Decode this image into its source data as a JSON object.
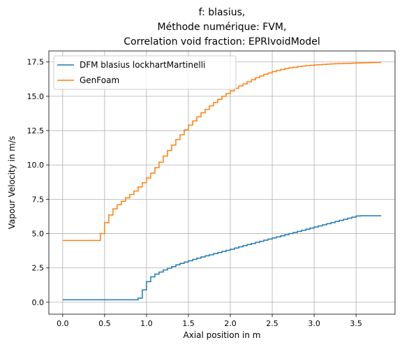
{
  "chart_data": {
    "type": "line",
    "title_lines": [
      "f: blasius,",
      "Méthode numérique: FVM,",
      "Correlation void fraction: EPRIvoidModel"
    ],
    "xlabel": "Axial position in m",
    "ylabel": "Vapour Velocity in m/s",
    "xlim": [
      -0.165,
      3.965
    ],
    "ylim": [
      -0.87,
      18.3
    ],
    "xticks": [
      0.0,
      0.5,
      1.0,
      1.5,
      2.0,
      2.5,
      3.0,
      3.5
    ],
    "xtick_labels": [
      "0.0",
      "0.5",
      "1.0",
      "1.5",
      "2.0",
      "2.5",
      "3.0",
      "3.5"
    ],
    "yticks": [
      0.0,
      2.5,
      5.0,
      7.5,
      10.0,
      12.5,
      15.0,
      17.5
    ],
    "ytick_labels": [
      "0.0",
      "2.5",
      "5.0",
      "7.5",
      "10.0",
      "12.5",
      "15.0",
      "17.5"
    ],
    "grid": true,
    "legend_position": "top-left",
    "step": true,
    "series": [
      {
        "name": "DFM blasius lockhartMartinelli",
        "color": "#1f77b4",
        "x": [
          0.0,
          0.05,
          0.1,
          0.15,
          0.2,
          0.25,
          0.3,
          0.35,
          0.4,
          0.45,
          0.5,
          0.55,
          0.6,
          0.65,
          0.7,
          0.75,
          0.8,
          0.85,
          0.9,
          0.95,
          1.0,
          1.05,
          1.1,
          1.15,
          1.2,
          1.25,
          1.3,
          1.35,
          1.4,
          1.45,
          1.5,
          1.55,
          1.6,
          1.65,
          1.7,
          1.75,
          1.8,
          1.85,
          1.9,
          1.95,
          2.0,
          2.05,
          2.1,
          2.15,
          2.2,
          2.25,
          2.3,
          2.35,
          2.4,
          2.45,
          2.5,
          2.55,
          2.6,
          2.65,
          2.7,
          2.75,
          2.8,
          2.85,
          2.9,
          2.95,
          3.0,
          3.05,
          3.1,
          3.15,
          3.2,
          3.25,
          3.3,
          3.35,
          3.4,
          3.45,
          3.5,
          3.55,
          3.6,
          3.65,
          3.7,
          3.75,
          3.8
        ],
        "y": [
          0.18,
          0.18,
          0.18,
          0.18,
          0.18,
          0.18,
          0.18,
          0.18,
          0.18,
          0.18,
          0.18,
          0.18,
          0.18,
          0.18,
          0.18,
          0.18,
          0.18,
          0.18,
          0.3,
          0.9,
          1.5,
          1.85,
          2.05,
          2.2,
          2.35,
          2.48,
          2.6,
          2.72,
          2.83,
          2.93,
          3.02,
          3.12,
          3.21,
          3.3,
          3.38,
          3.46,
          3.54,
          3.62,
          3.7,
          3.78,
          3.86,
          3.95,
          4.04,
          4.12,
          4.2,
          4.28,
          4.36,
          4.44,
          4.52,
          4.6,
          4.68,
          4.76,
          4.84,
          4.92,
          5.0,
          5.08,
          5.16,
          5.24,
          5.32,
          5.4,
          5.48,
          5.56,
          5.64,
          5.72,
          5.8,
          5.88,
          5.96,
          6.04,
          6.12,
          6.2,
          6.28,
          6.3,
          6.3,
          6.3,
          6.3,
          6.3,
          6.3
        ]
      },
      {
        "name": "GenFoam",
        "color": "#ff7f0e",
        "x": [
          0.0,
          0.05,
          0.1,
          0.15,
          0.2,
          0.25,
          0.3,
          0.35,
          0.4,
          0.45,
          0.5,
          0.55,
          0.6,
          0.65,
          0.7,
          0.75,
          0.8,
          0.85,
          0.9,
          0.95,
          1.0,
          1.05,
          1.1,
          1.15,
          1.2,
          1.25,
          1.3,
          1.35,
          1.4,
          1.45,
          1.5,
          1.55,
          1.6,
          1.65,
          1.7,
          1.75,
          1.8,
          1.85,
          1.9,
          1.95,
          2.0,
          2.05,
          2.1,
          2.15,
          2.2,
          2.25,
          2.3,
          2.35,
          2.4,
          2.45,
          2.5,
          2.55,
          2.6,
          2.65,
          2.7,
          2.75,
          2.8,
          2.85,
          2.9,
          2.95,
          3.0,
          3.05,
          3.1,
          3.15,
          3.2,
          3.25,
          3.3,
          3.35,
          3.4,
          3.45,
          3.5,
          3.55,
          3.6,
          3.65,
          3.7,
          3.75,
          3.8
        ],
        "y": [
          4.5,
          4.5,
          4.5,
          4.5,
          4.5,
          4.5,
          4.5,
          4.5,
          4.5,
          5.0,
          5.8,
          6.35,
          6.8,
          7.1,
          7.35,
          7.6,
          7.85,
          8.1,
          8.4,
          8.7,
          9.05,
          9.4,
          9.8,
          10.2,
          10.65,
          11.05,
          11.45,
          11.85,
          12.2,
          12.55,
          12.9,
          13.2,
          13.5,
          13.8,
          14.05,
          14.3,
          14.55,
          14.78,
          15.0,
          15.2,
          15.4,
          15.58,
          15.75,
          15.9,
          16.05,
          16.2,
          16.35,
          16.48,
          16.6,
          16.7,
          16.8,
          16.88,
          16.95,
          17.02,
          17.08,
          17.12,
          17.16,
          17.2,
          17.23,
          17.26,
          17.28,
          17.3,
          17.32,
          17.34,
          17.36,
          17.37,
          17.38,
          17.39,
          17.4,
          17.41,
          17.42,
          17.43,
          17.44,
          17.45,
          17.46,
          17.46,
          17.46
        ]
      }
    ]
  }
}
